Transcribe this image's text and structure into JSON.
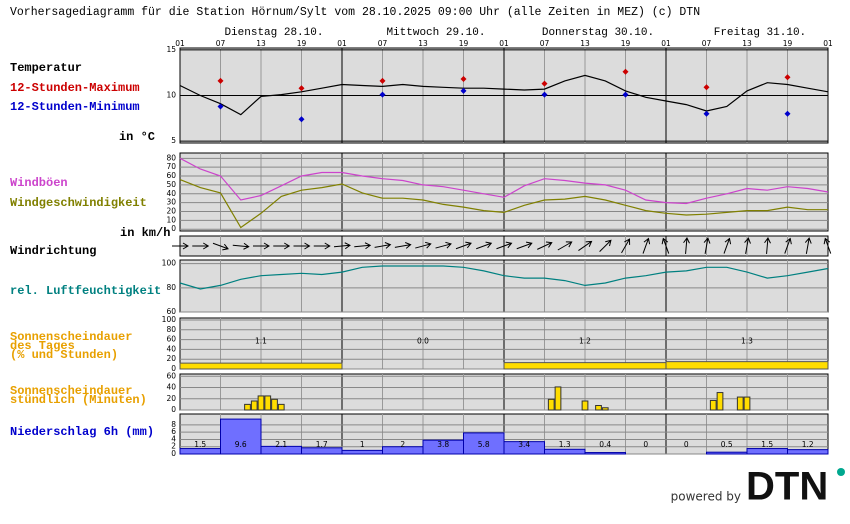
{
  "title": "Vorhersagediagramm für die Station Hörnum/Sylt vom 28.10.2025 09:00 Uhr (alle Zeiten in MEZ)   (c) DTN",
  "days": [
    "Dienstag 28.10.",
    "Mittwoch 29.10.",
    "Donnerstag 30.10.",
    "Freitag 31.10."
  ],
  "xlim": [
    0,
    96
  ],
  "xticks": [
    {
      "value": 0,
      "label": "01"
    },
    {
      "value": 6,
      "label": "07"
    },
    {
      "value": 12,
      "label": "13"
    },
    {
      "value": 18,
      "label": "19"
    },
    {
      "value": 24,
      "label": "01"
    },
    {
      "value": 30,
      "label": "07"
    },
    {
      "value": 36,
      "label": "13"
    },
    {
      "value": 42,
      "label": "19"
    },
    {
      "value": 48,
      "label": "01"
    },
    {
      "value": 54,
      "label": "07"
    },
    {
      "value": 60,
      "label": "13"
    },
    {
      "value": 66,
      "label": "19"
    },
    {
      "value": 72,
      "label": "01"
    },
    {
      "value": 78,
      "label": "07"
    },
    {
      "value": 84,
      "label": "13"
    },
    {
      "value": 90,
      "label": "19"
    },
    {
      "value": 96,
      "label": "01"
    }
  ],
  "chart_data": [
    {
      "type": "line",
      "title": "Temperatur",
      "unit": "in °C",
      "ylim": [
        4.8,
        15.2
      ],
      "yticks": [
        5,
        10,
        15
      ],
      "series": [
        {
          "color": "#000000",
          "x": [
            0,
            3,
            6,
            9,
            12,
            15,
            18,
            21,
            24,
            27,
            30,
            33,
            36,
            39,
            42,
            45,
            48,
            51,
            54,
            57,
            60,
            63,
            66,
            69,
            72,
            75,
            78,
            81,
            84,
            87,
            90,
            93,
            96
          ],
          "values": [
            11.1,
            10.0,
            9.1,
            7.9,
            9.9,
            10.1,
            10.4,
            10.8,
            11.2,
            11.1,
            11.0,
            11.2,
            11.0,
            10.9,
            10.8,
            10.8,
            10.7,
            10.6,
            10.7,
            11.6,
            12.2,
            11.6,
            10.5,
            9.8,
            9.4,
            9.0,
            8.3,
            8.8,
            10.5,
            11.4,
            11.2,
            10.8,
            10.4
          ]
        },
        {
          "name": "12-Stunden-Maximum",
          "color": "#cc0000",
          "marker": "diamond",
          "x": [
            6,
            18,
            30,
            42,
            54,
            66,
            78,
            90
          ],
          "values": [
            11.6,
            10.8,
            11.6,
            11.8,
            11.3,
            12.6,
            10.9,
            12.0
          ]
        },
        {
          "name": "12-Stunden-Minimum",
          "color": "#0000cc",
          "marker": "diamond",
          "x": [
            6,
            18,
            30,
            42,
            54,
            66,
            78,
            90
          ],
          "values": [
            8.8,
            7.4,
            10.1,
            10.5,
            10.1,
            10.1,
            8.0,
            8.0
          ]
        }
      ]
    },
    {
      "type": "line",
      "unit": "in km/h",
      "ylim": [
        -2,
        86
      ],
      "yticks": [
        0,
        10,
        20,
        30,
        40,
        50,
        60,
        70,
        80
      ],
      "series": [
        {
          "name": "Windböen",
          "color": "#cc44cc",
          "x": [
            0,
            3,
            6,
            9,
            12,
            15,
            18,
            21,
            24,
            27,
            30,
            33,
            36,
            39,
            42,
            45,
            48,
            51,
            54,
            57,
            60,
            63,
            66,
            69,
            72,
            75,
            78,
            81,
            84,
            87,
            90,
            93,
            96
          ],
          "values": [
            80,
            68,
            60,
            33,
            38,
            49,
            60,
            64,
            64,
            60,
            57,
            55,
            50,
            48,
            44,
            40,
            36,
            49,
            57,
            55,
            52,
            50,
            44,
            33,
            30,
            29,
            35,
            40,
            46,
            44,
            48,
            46,
            42
          ]
        },
        {
          "name": "Windgeschwindigkeit",
          "color": "#808000",
          "x": [
            0,
            3,
            6,
            9,
            12,
            15,
            18,
            21,
            24,
            27,
            30,
            33,
            36,
            39,
            42,
            45,
            48,
            51,
            54,
            57,
            60,
            63,
            66,
            69,
            72,
            75,
            78,
            81,
            84,
            87,
            90,
            93,
            96
          ],
          "values": [
            56,
            47,
            41,
            2,
            18,
            37,
            44,
            47,
            51,
            41,
            35,
            35,
            33,
            28,
            25,
            21,
            19,
            27,
            33,
            34,
            37,
            33,
            27,
            21,
            18,
            16,
            17,
            19,
            21,
            21,
            25,
            22,
            22
          ]
        }
      ]
    },
    {
      "type": "arrows",
      "title": "Windrichtung",
      "x": [
        0,
        3,
        6,
        9,
        12,
        15,
        18,
        21,
        24,
        27,
        30,
        33,
        36,
        39,
        42,
        45,
        48,
        51,
        54,
        57,
        60,
        63,
        66,
        69,
        72,
        75,
        78,
        81,
        84,
        87,
        90,
        93,
        96
      ],
      "values": [
        270,
        270,
        290,
        275,
        270,
        270,
        270,
        270,
        265,
        265,
        260,
        260,
        255,
        255,
        250,
        250,
        250,
        250,
        245,
        240,
        235,
        225,
        210,
        200,
        160,
        185,
        190,
        200,
        190,
        185,
        200,
        190,
        160
      ]
    },
    {
      "type": "line",
      "ylim": [
        60,
        103
      ],
      "yticks": [
        60,
        80,
        100
      ],
      "series": [
        {
          "name": "rel. Luftfeuchtigkeit",
          "color": "#008080",
          "x": [
            0,
            3,
            6,
            9,
            12,
            15,
            18,
            21,
            24,
            27,
            30,
            33,
            36,
            39,
            42,
            45,
            48,
            51,
            54,
            57,
            60,
            63,
            66,
            69,
            72,
            75,
            78,
            81,
            84,
            87,
            90,
            93,
            96
          ],
          "values": [
            84,
            79,
            82,
            87,
            90,
            91,
            92,
            91,
            93,
            97,
            98,
            98,
            98,
            98,
            97,
            94,
            90,
            88,
            88,
            86,
            82,
            84,
            88,
            90,
            93,
            94,
            97,
            97,
            93,
            88,
            90,
            93,
            96
          ]
        }
      ]
    },
    {
      "type": "histogram",
      "title_lines": [
        "Sonnenscheindauer",
        "des Tages",
        "(% und Stunden)"
      ],
      "title_color": "#e8a000",
      "bins": [
        0,
        24,
        48,
        72,
        96
      ],
      "values": [
        12,
        0,
        13,
        15
      ],
      "hours": [
        "1.1",
        "0.0",
        "1.2",
        "1.3"
      ],
      "color": "#ffdd00",
      "ylim": [
        0,
        104
      ],
      "yticks": [
        0,
        20,
        40,
        60,
        80,
        100
      ]
    },
    {
      "type": "bar",
      "title_lines": [
        "Sonnenscheindauer",
        "stündlich (Minuten)"
      ],
      "title_color": "#e8a000",
      "x": [
        10,
        11,
        12,
        13,
        14,
        15,
        55,
        56,
        60,
        62,
        63,
        79,
        80,
        83,
        84
      ],
      "values": [
        10,
        16,
        25,
        25,
        19,
        10,
        19,
        41,
        16,
        8,
        4,
        17,
        31,
        23,
        23
      ],
      "color": "#ffdd00",
      "ylim": [
        0,
        64
      ],
      "yticks": [
        0,
        20,
        40,
        60
      ]
    },
    {
      "type": "histogram",
      "title": "Niederschlag 6h (mm)",
      "title_color": "#0000cc",
      "bins": [
        0,
        6,
        12,
        18,
        24,
        30,
        36,
        42,
        48,
        54,
        60,
        66,
        72,
        78,
        84,
        90,
        96
      ],
      "values": [
        1.5,
        9.6,
        2.1,
        1.7,
        1,
        2,
        3.8,
        5.8,
        3.4,
        1.3,
        0.4,
        0,
        0,
        0.5,
        1.5,
        1.2
      ],
      "color": "#6f6fff",
      "ylim": [
        0,
        11
      ],
      "yticks": [
        0,
        2,
        4,
        6,
        8
      ]
    }
  ],
  "footer": {
    "powered_by": "powered by",
    "logo": "DTN"
  }
}
